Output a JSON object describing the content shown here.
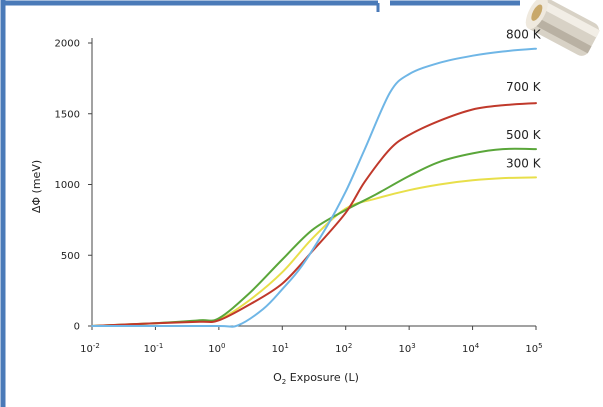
{
  "colors": {
    "frame": "#4a7ab8",
    "background": "#ffffff",
    "axis": "#444444"
  },
  "chart_data": {
    "type": "line",
    "title": "",
    "xlabel": "O2 Exposure (L)",
    "xlabel_parts": {
      "pre": "O",
      "sub": "2",
      "post": " Exposure (L)"
    },
    "ylabel": "ΔΦ (meV)",
    "x_scale": "log",
    "xlim": [
      0.01,
      100000
    ],
    "ylim": [
      0,
      2000
    ],
    "x_ticks": [
      {
        "value": 0.01,
        "base": "10",
        "exp": "-2"
      },
      {
        "value": 0.1,
        "base": "10",
        "exp": "-1"
      },
      {
        "value": 1,
        "base": "10",
        "exp": "0"
      },
      {
        "value": 10,
        "base": "10",
        "exp": "1"
      },
      {
        "value": 100,
        "base": "10",
        "exp": "2"
      },
      {
        "value": 1000,
        "base": "10",
        "exp": "3"
      },
      {
        "value": 10000,
        "base": "10",
        "exp": "4"
      },
      {
        "value": 100000,
        "base": "10",
        "exp": "5"
      }
    ],
    "y_ticks": [
      0,
      500,
      1000,
      1500,
      2000
    ],
    "y_tick_labels": [
      "0",
      "500",
      "1000",
      "1500",
      "2000"
    ],
    "grid": false,
    "legend": "labels at line ends (right)",
    "series": [
      {
        "name": "800 K",
        "color": "#6fb6e6",
        "x": [
          0.01,
          0.1,
          1,
          2,
          5,
          10,
          20,
          50,
          100,
          200,
          500,
          1000,
          3000,
          10000,
          30000,
          100000
        ],
        "y": [
          0,
          0,
          0,
          5,
          120,
          260,
          420,
          700,
          950,
          1250,
          1650,
          1780,
          1860,
          1910,
          1940,
          1960
        ]
      },
      {
        "name": "700 K",
        "color": "#c0392b",
        "x": [
          0.01,
          0.1,
          0.5,
          1,
          3,
          10,
          30,
          100,
          200,
          500,
          1000,
          3000,
          10000,
          30000,
          100000
        ],
        "y": [
          0,
          20,
          30,
          40,
          150,
          300,
          530,
          800,
          1020,
          1250,
          1350,
          1450,
          1530,
          1560,
          1575
        ]
      },
      {
        "name": "500 K",
        "color": "#5aa63a",
        "x": [
          0.01,
          0.1,
          0.5,
          1,
          3,
          10,
          30,
          100,
          300,
          1000,
          3000,
          10000,
          30000,
          100000
        ],
        "y": [
          0,
          20,
          40,
          55,
          230,
          470,
          680,
          820,
          930,
          1060,
          1160,
          1220,
          1250,
          1250
        ]
      },
      {
        "name": "300 K",
        "color": "#e8df4a",
        "x": [
          0.01,
          0.1,
          0.5,
          1,
          3,
          10,
          30,
          100,
          300,
          1000,
          3000,
          10000,
          30000,
          100000
        ],
        "y": [
          0,
          20,
          35,
          45,
          180,
          380,
          620,
          830,
          900,
          960,
          1000,
          1030,
          1045,
          1050
        ]
      }
    ]
  }
}
